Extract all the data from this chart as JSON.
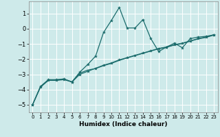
{
  "xlabel": "Humidex (Indice chaleur)",
  "bg_color": "#ceeaea",
  "grid_color": "#ffffff",
  "line_color": "#1a6b6b",
  "xlim": [
    -0.5,
    23.5
  ],
  "ylim": [
    -5.5,
    1.8
  ],
  "xticks": [
    0,
    1,
    2,
    3,
    4,
    5,
    6,
    7,
    8,
    9,
    10,
    11,
    12,
    13,
    14,
    15,
    16,
    17,
    18,
    19,
    20,
    21,
    22,
    23
  ],
  "yticks": [
    -5,
    -4,
    -3,
    -2,
    -1,
    0,
    1
  ],
  "curve1_x": [
    0,
    1,
    2,
    3,
    4,
    5,
    6,
    7,
    8,
    9,
    10,
    11,
    12,
    13,
    14,
    15,
    16,
    17,
    18,
    19,
    20,
    21,
    22,
    23
  ],
  "curve1_y": [
    -5.0,
    -3.8,
    -3.35,
    -3.35,
    -3.3,
    -3.5,
    -2.85,
    -2.35,
    -1.8,
    -0.25,
    0.55,
    1.4,
    0.05,
    0.05,
    0.6,
    -0.65,
    -1.5,
    -1.2,
    -0.95,
    -1.25,
    -0.65,
    -0.55,
    -0.5,
    -0.4
  ],
  "curve2_x": [
    0,
    1,
    2,
    3,
    4,
    5,
    6,
    7,
    8,
    9,
    10,
    11,
    12,
    13,
    14,
    15,
    16,
    17,
    18,
    19,
    20,
    21,
    22,
    23
  ],
  "curve2_y": [
    -5.0,
    -3.85,
    -3.4,
    -3.4,
    -3.35,
    -3.5,
    -3.0,
    -2.8,
    -2.6,
    -2.4,
    -2.25,
    -2.05,
    -1.9,
    -1.75,
    -1.6,
    -1.45,
    -1.3,
    -1.2,
    -1.05,
    -0.95,
    -0.8,
    -0.65,
    -0.55,
    -0.4
  ],
  "curve3_x": [
    0,
    1,
    2,
    3,
    4,
    5,
    6,
    7,
    8,
    9,
    10,
    11,
    12,
    13,
    14,
    15,
    16,
    17,
    18,
    19,
    20,
    21,
    22,
    23
  ],
  "curve3_y": [
    -5.0,
    -3.82,
    -3.38,
    -3.38,
    -3.32,
    -3.5,
    -2.92,
    -2.72,
    -2.62,
    -2.43,
    -2.28,
    -2.08,
    -1.92,
    -1.77,
    -1.62,
    -1.47,
    -1.32,
    -1.22,
    -1.07,
    -0.97,
    -0.82,
    -0.67,
    -0.57,
    -0.42
  ]
}
